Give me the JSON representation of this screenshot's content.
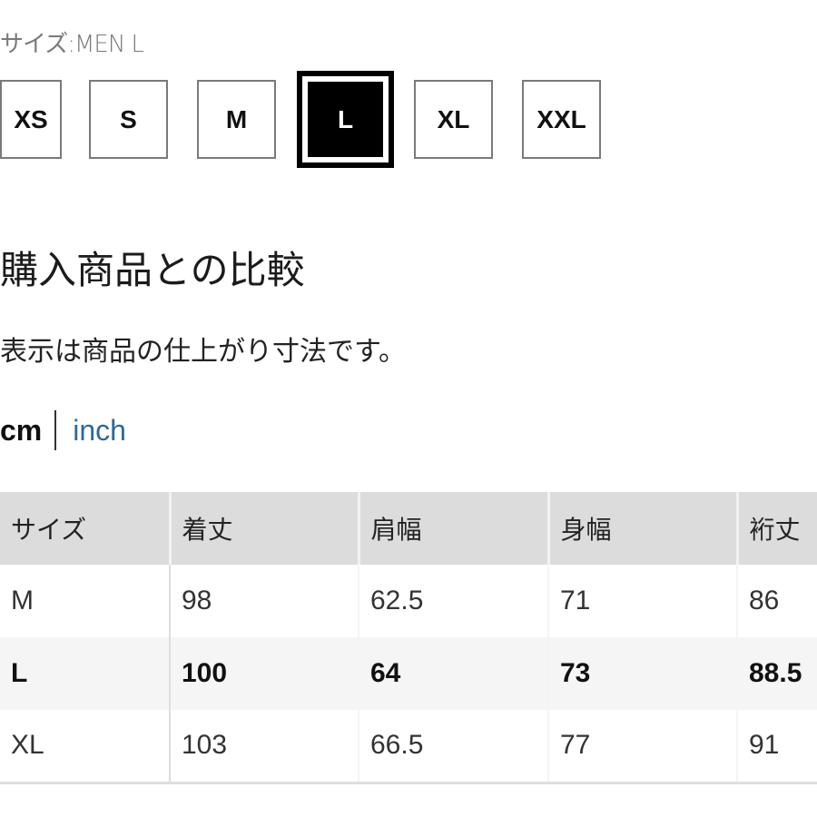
{
  "size_label": "サイズ:MEN L",
  "sizes": [
    {
      "label": "XS",
      "selected": false
    },
    {
      "label": "S",
      "selected": false
    },
    {
      "label": "M",
      "selected": false
    },
    {
      "label": "L",
      "selected": true
    },
    {
      "label": "XL",
      "selected": false
    },
    {
      "label": "XXL",
      "selected": false
    }
  ],
  "heading": "購入商品との比較",
  "note": "表示は商品の仕上がり寸法です。",
  "units": {
    "cm": "cm",
    "inch": "inch",
    "active": "cm",
    "link_color": "#2d6a99"
  },
  "table": {
    "headers": [
      "サイズ",
      "着丈",
      "肩幅",
      "身幅",
      "裄丈"
    ],
    "rows": [
      [
        "M",
        "98",
        "62.5",
        "71",
        "86"
      ],
      [
        "L",
        "100",
        "64",
        "73",
        "88.5"
      ],
      [
        "XL",
        "103",
        "66.5",
        "77",
        "91"
      ]
    ],
    "selected_row": "L"
  }
}
